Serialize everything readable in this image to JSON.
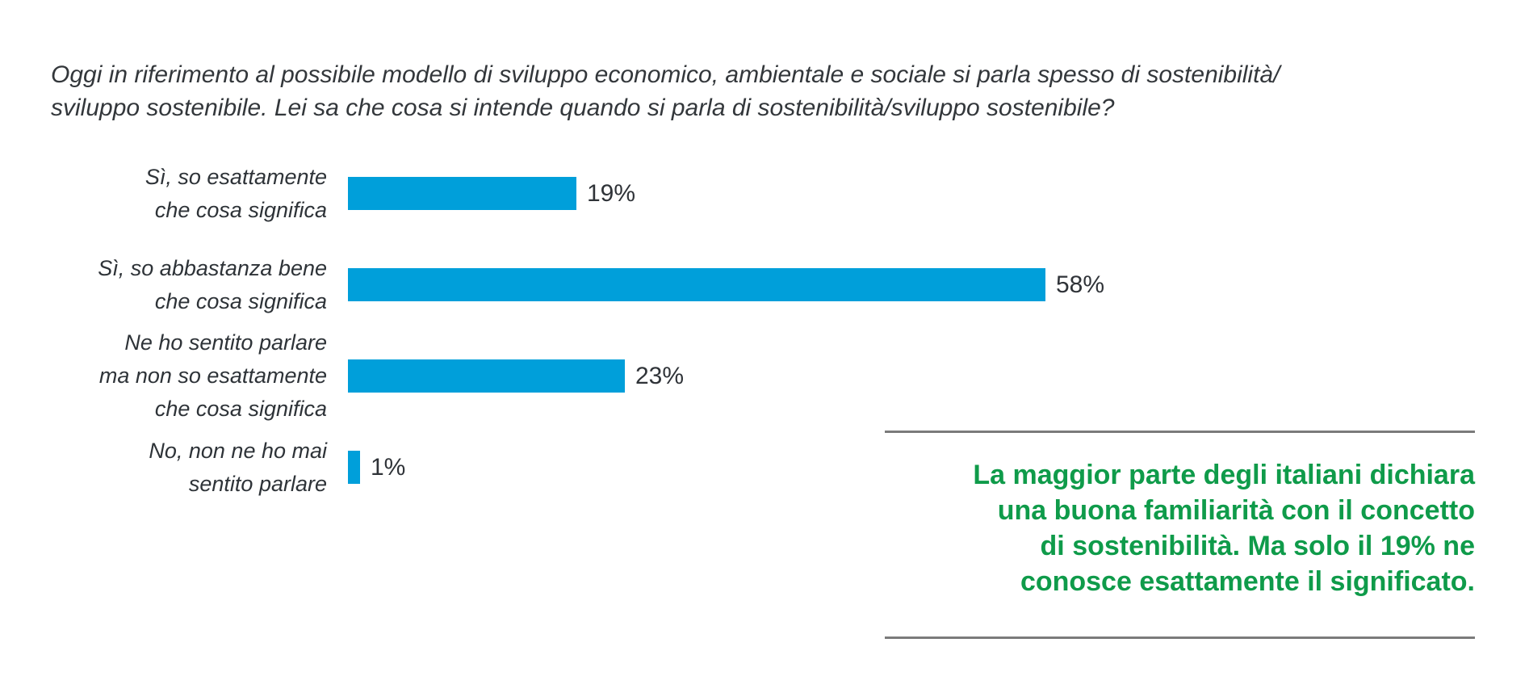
{
  "question": {
    "text": "Oggi in riferimento al possibile modello di sviluppo economico, ambientale e sociale si parla spesso di sostenibilità/\nsviluppo sostenibile. Lei sa che cosa si intende quando si parla di sostenibilità/sviluppo sostenibile?"
  },
  "chart_data": {
    "type": "bar",
    "orientation": "horizontal",
    "categories": [
      "Sì, so esattamente\nche cosa significa",
      "Sì, so abbastanza bene\nche cosa significa",
      "Ne ho sentito parlare\nma non so esattamente\nche cosa significa",
      "No, non ne ho mai\nsentito parlare"
    ],
    "values": [
      19,
      58,
      23,
      1
    ],
    "value_labels": [
      "19%",
      "58%",
      "23%",
      "1%"
    ],
    "unit": "%",
    "xlim": [
      0,
      100
    ],
    "grid": false,
    "legend": false,
    "bar_color": "#009fda",
    "label_color": "#2e3338",
    "value_color": "#2f3338"
  },
  "callout": {
    "text": "La maggior parte degli italiani dichiara\nuna buona familiarità con il concetto\ndi sostenibilità. Ma solo il 19% ne\nconosce esattamente il significato.",
    "text_color": "#0f9b4a",
    "rule_color": "#7b7b7b"
  }
}
